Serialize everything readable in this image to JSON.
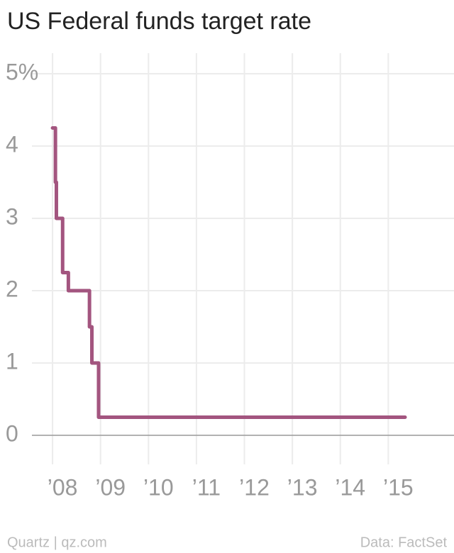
{
  "chart_data": {
    "type": "line",
    "step": "post",
    "title": "US Federal funds target rate",
    "source_left": "Quartz | qz.com",
    "source_right": "Data: FactSet",
    "series": [
      {
        "color": "#a3557f",
        "x": [
          2008.0,
          2008.06,
          2008.08,
          2008.21,
          2008.33,
          2008.77,
          2008.82,
          2008.96,
          2015.35
        ],
        "values": [
          4.25,
          3.5,
          3.0,
          2.25,
          2.0,
          1.5,
          1.0,
          0.25,
          0.25
        ]
      }
    ],
    "xlim": [
      2007.57,
      2016.37
    ],
    "xticks": [
      {
        "value": 2008,
        "label": "’08"
      },
      {
        "value": 2009,
        "label": "’09"
      },
      {
        "value": 2010,
        "label": "’10"
      },
      {
        "value": 2011,
        "label": "’11"
      },
      {
        "value": 2012,
        "label": "’12"
      },
      {
        "value": 2013,
        "label": "’13"
      },
      {
        "value": 2014,
        "label": "’14"
      },
      {
        "value": 2015,
        "label": "’15"
      }
    ],
    "ylim": [
      0,
      5
    ],
    "yticks": [
      0,
      1,
      2,
      3,
      4,
      {
        "value": 5,
        "label": "5%"
      }
    ],
    "grid": true
  }
}
